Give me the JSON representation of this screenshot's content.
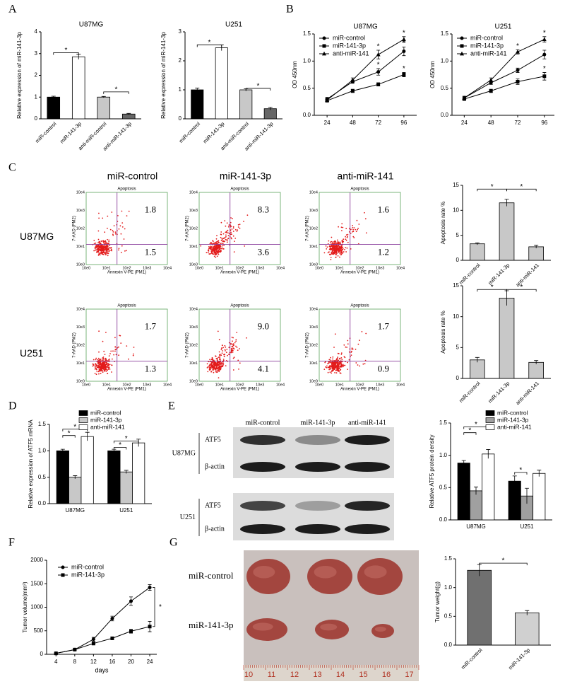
{
  "panel_labels": [
    "A",
    "B",
    "C",
    "D",
    "E",
    "F",
    "G"
  ],
  "chart_data": [
    {
      "type": "bar",
      "title": "U87MG",
      "ylabel": "Relative expression of miR-141-3p",
      "categories": [
        "miR-control",
        "miR-141-3p",
        "anti-miR-control",
        "anti-miR-141-3p"
      ],
      "values": [
        1.0,
        2.85,
        1.0,
        0.22
      ],
      "errors": [
        0.04,
        0.12,
        0.03,
        0.03
      ],
      "colors": [
        "#000000",
        "#ffffff",
        "#c8c8c8",
        "#666666"
      ],
      "ylim": [
        0,
        4
      ],
      "yticks": [
        0,
        1,
        2,
        3,
        4
      ],
      "annotations": [
        "*",
        "*"
      ]
    },
    {
      "type": "bar",
      "title": "U251",
      "ylabel": "Relative expression of miR-141-3p",
      "categories": [
        "miR-control",
        "miR-141-3p",
        "anti-miR-control",
        "anti-miR-141-3p"
      ],
      "values": [
        1.0,
        2.45,
        1.0,
        0.35
      ],
      "errors": [
        0.06,
        0.1,
        0.04,
        0.05
      ],
      "colors": [
        "#000000",
        "#ffffff",
        "#c8c8c8",
        "#666666"
      ],
      "ylim": [
        0,
        3
      ],
      "yticks": [
        0,
        1,
        2,
        3
      ],
      "annotations": [
        "*",
        "*"
      ]
    },
    {
      "type": "line",
      "title": "U87MG",
      "ylabel": "OD 450nm",
      "x": [
        24,
        48,
        72,
        96
      ],
      "xlim": [
        12,
        108
      ],
      "xticks": [
        24,
        48,
        72,
        96
      ],
      "ylim": [
        0,
        1.5
      ],
      "yticks": [
        {
          "value": 0,
          "label": "0.0"
        },
        {
          "value": 0.5,
          "label": "0.5"
        },
        {
          "value": 1,
          "label": "1.0"
        },
        {
          "value": 1.5,
          "label": "1.5"
        }
      ],
      "series": [
        {
          "name": "miR-control",
          "color": "#000000",
          "marker": "circle",
          "values": [
            0.3,
            0.62,
            0.8,
            1.18
          ],
          "errors": [
            0.03,
            0.03,
            0.06,
            0.08
          ]
        },
        {
          "name": "miR-141-3p",
          "color": "#000000",
          "marker": "square",
          "values": [
            0.27,
            0.45,
            0.57,
            0.75
          ],
          "errors": [
            0.02,
            0.03,
            0.03,
            0.04
          ]
        },
        {
          "name": "anti-miR-141",
          "color": "#000000",
          "marker": "triangle",
          "values": [
            0.28,
            0.65,
            1.12,
            1.4
          ],
          "errors": [
            0.03,
            0.04,
            0.08,
            0.05
          ]
        }
      ],
      "annotations": [
        "*",
        "*",
        "*",
        "*",
        "*"
      ]
    },
    {
      "type": "line",
      "title": "U251",
      "ylabel": "OD 450nm",
      "x": [
        24,
        48,
        72,
        96
      ],
      "xlim": [
        13,
        105
      ],
      "xticks": [
        24,
        48,
        72,
        96
      ],
      "ylim": [
        0,
        1.5
      ],
      "yticks": [
        {
          "value": 0,
          "label": "0.0"
        },
        {
          "value": 0.5,
          "label": "0.5"
        },
        {
          "value": 1,
          "label": "1.0"
        },
        {
          "value": 1.5,
          "label": "1.5"
        }
      ],
      "series": [
        {
          "name": "miR-control",
          "color": "#000000",
          "marker": "circle",
          "values": [
            0.32,
            0.6,
            0.83,
            1.12
          ],
          "errors": [
            0.03,
            0.03,
            0.04,
            0.08
          ]
        },
        {
          "name": "miR-141-3p",
          "color": "#000000",
          "marker": "square",
          "values": [
            0.3,
            0.45,
            0.62,
            0.72
          ],
          "errors": [
            0.02,
            0.03,
            0.05,
            0.07
          ]
        },
        {
          "name": "anti-miR-141",
          "color": "#000000",
          "marker": "triangle",
          "values": [
            0.32,
            0.65,
            1.17,
            1.4
          ],
          "errors": [
            0.03,
            0.04,
            0.04,
            0.05
          ]
        }
      ],
      "annotations": [
        "*",
        "*",
        "*"
      ]
    },
    {
      "type": "bar",
      "ylabel": "Apoptosis rate %",
      "categories": [
        "miR-control",
        "miR-141-3p",
        "anti-miR-141"
      ],
      "values": [
        3.3,
        11.5,
        2.7
      ],
      "errors": [
        0.2,
        0.7,
        0.3
      ],
      "colors": [
        "#c8c8c8",
        "#c8c8c8",
        "#c8c8c8"
      ],
      "ylim": [
        0,
        15
      ],
      "yticks": [
        0,
        5,
        10,
        15
      ],
      "annotations": [
        "*",
        "*"
      ]
    },
    {
      "type": "bar",
      "ylabel": "Apoptosis rate %",
      "categories": [
        "miR-control",
        "miR-141-3p",
        "anti-miR-141"
      ],
      "values": [
        3.0,
        13.0,
        2.6
      ],
      "errors": [
        0.4,
        1.2,
        0.3
      ],
      "colors": [
        "#c8c8c8",
        "#c8c8c8",
        "#c8c8c8"
      ],
      "ylim": [
        0,
        15
      ],
      "yticks": [
        0,
        5,
        10,
        15
      ],
      "annotations": [
        "*",
        "*"
      ]
    },
    {
      "type": "bar",
      "ylabel": "Relative expression of ATF5 mRNA",
      "categories": [
        "U87MG",
        "U251"
      ],
      "series": [
        {
          "name": "miR-control",
          "color": "#000000",
          "values": [
            1.0,
            1.0
          ],
          "errors": [
            0.03,
            0.03
          ]
        },
        {
          "name": "miR-141-3p",
          "color": "#c8c8c8",
          "values": [
            0.5,
            0.6
          ],
          "errors": [
            0.03,
            0.03
          ]
        },
        {
          "name": "anti-miR-141",
          "color": "#ffffff",
          "values": [
            1.27,
            1.15
          ],
          "errors": [
            0.08,
            0.07
          ]
        }
      ],
      "ylim": [
        0,
        1.5
      ],
      "yticks": [
        {
          "value": 0,
          "label": "0.0"
        },
        {
          "value": 0.5,
          "label": "0.5"
        },
        {
          "value": 1,
          "label": "1.0"
        },
        {
          "value": 1.5,
          "label": "1.5"
        }
      ],
      "annotations": [
        "*",
        "*",
        "*",
        "*"
      ]
    },
    {
      "type": "bar",
      "ylabel": "Relative ATF5 protein density",
      "categories": [
        "U87MG",
        "U251"
      ],
      "series": [
        {
          "name": "miR-control",
          "color": "#000000",
          "values": [
            0.88,
            0.6
          ],
          "errors": [
            0.04,
            0.08
          ]
        },
        {
          "name": "miR-141-3p",
          "color": "#a0a0a0",
          "values": [
            0.45,
            0.37
          ],
          "errors": [
            0.06,
            0.12
          ]
        },
        {
          "name": "anti-miR-141",
          "color": "#ffffff",
          "values": [
            1.02,
            0.72
          ],
          "errors": [
            0.07,
            0.05
          ]
        }
      ],
      "ylim": [
        0,
        1.5
      ],
      "yticks": [
        {
          "value": 0,
          "label": "0.0"
        },
        {
          "value": 0.5,
          "label": "0.5"
        },
        {
          "value": 1,
          "label": "1.0"
        },
        {
          "value": 1.5,
          "label": "1.5"
        }
      ],
      "annotations": [
        "*",
        "*",
        "*"
      ]
    },
    {
      "type": "line",
      "ylabel": "Tumor volume(mm³)",
      "xlabel": "days",
      "x": [
        4,
        8,
        12,
        16,
        20,
        24
      ],
      "xlim": [
        2,
        25.5
      ],
      "xticks": [
        4,
        8,
        12,
        16,
        20,
        24
      ],
      "ylim": [
        0,
        2000
      ],
      "yticks": [
        0,
        500,
        1000,
        1500,
        2000
      ],
      "series": [
        {
          "name": "miR-control",
          "color": "#000000",
          "marker": "circle",
          "values": [
            20,
            100,
            320,
            760,
            1130,
            1420
          ],
          "errors": [
            10,
            15,
            40,
            50,
            90,
            60
          ]
        },
        {
          "name": "miR-141-3p",
          "color": "#000000",
          "marker": "square",
          "values": [
            20,
            100,
            230,
            340,
            490,
            590
          ],
          "errors": [
            10,
            15,
            30,
            30,
            40,
            110
          ]
        }
      ],
      "annotations": [
        "*"
      ]
    },
    {
      "type": "bar",
      "ylabel": "Tumor weight(g)",
      "categories": [
        "miR-control",
        "miR-141-3p"
      ],
      "values": [
        1.3,
        0.56
      ],
      "errors": [
        0.1,
        0.04
      ],
      "colors": [
        "#707070",
        "#d0d0d0"
      ],
      "ylim": [
        0,
        1.5
      ],
      "yticks": [
        {
          "value": 0,
          "label": "0.0"
        },
        {
          "value": 0.5,
          "label": "0.5"
        },
        {
          "value": 1,
          "label": "1.0"
        },
        {
          "value": 1.5,
          "label": "1.5"
        }
      ],
      "annotations": [
        "*"
      ]
    }
  ],
  "flow": {
    "title": "Apoptosis",
    "xlabel": "Annexin V-PE (PM1)",
    "ylabel": "7-AAD (PM2)",
    "ticks": [
      "10e0",
      "10e1",
      "10e2",
      "10e3",
      "10e4"
    ],
    "columns": [
      "miR-control",
      "miR-141-3p",
      "anti-miR-141"
    ],
    "rows": [
      {
        "label": "U87MG",
        "plots": [
          {
            "upper_right": "1.8",
            "lower_right": "1.5"
          },
          {
            "upper_right": "8.3",
            "lower_right": "3.6"
          },
          {
            "upper_right": "1.6",
            "lower_right": "1.2"
          }
        ]
      },
      {
        "label": "U251",
        "plots": [
          {
            "upper_right": "1.7",
            "lower_right": "1.3"
          },
          {
            "upper_right": "9.0",
            "lower_right": "4.1"
          },
          {
            "upper_right": "1.7",
            "lower_right": "0.9"
          }
        ]
      }
    ]
  },
  "blot": {
    "columns": [
      "miR-control",
      "miR-141-3p",
      "anti-miR-141"
    ],
    "rows": [
      {
        "label": "U87MG",
        "bands": [
          "ATF5",
          "β-actin"
        ]
      },
      {
        "label": "U251",
        "bands": [
          "ATF5",
          "β-actin"
        ]
      }
    ]
  },
  "tumor_photo": {
    "rows": [
      "miR-control",
      "miR-141-3p"
    ],
    "ruler": [
      10,
      11,
      12,
      13,
      14,
      15,
      16,
      17
    ]
  }
}
